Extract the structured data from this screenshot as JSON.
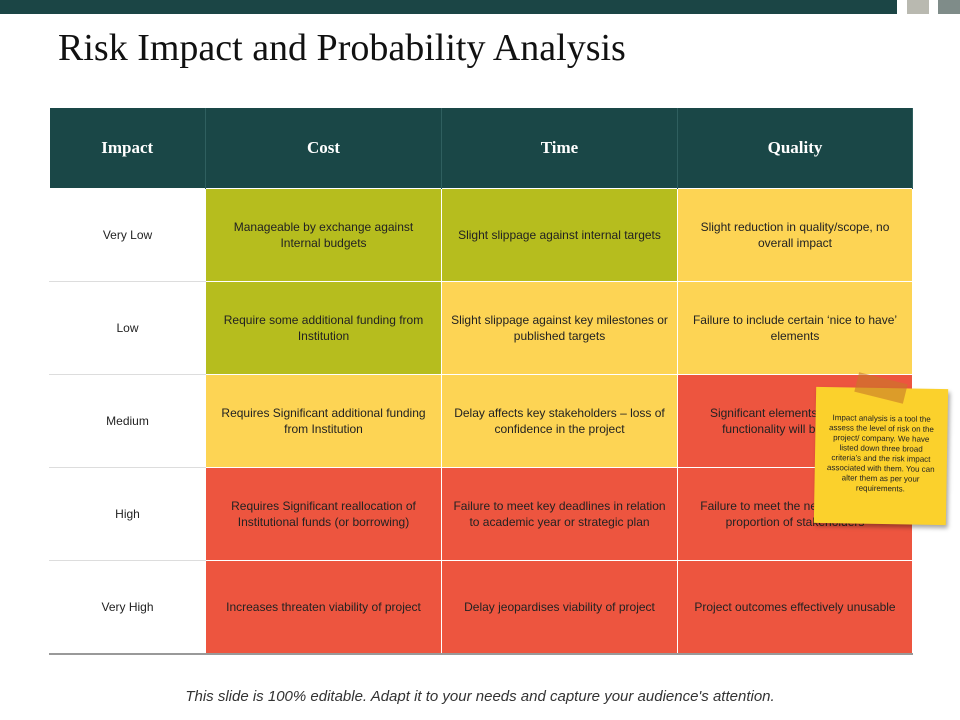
{
  "title": "Risk Impact and Probability Analysis",
  "table": {
    "header": [
      "Impact",
      "Cost",
      "Time",
      "Quality"
    ],
    "rows": [
      [
        "Very Low",
        "Manageable by exchange against Internal budgets",
        "Slight slippage against internal targets",
        "Slight reduction in quality/scope, no overall impact"
      ],
      [
        "Low",
        "Require some additional funding from Institution",
        "Slight slippage against key milestones or published targets",
        "Failure to include certain ‘nice to have’ elements"
      ],
      [
        "Medium",
        "Requires Significant additional funding from Institution",
        "Delay affects key stakeholders – loss of confidence in the project",
        "Significant elements of scope or functionality will be affected"
      ],
      [
        "High",
        "Requires Significant reallocation of Institutional funds (or borrowing)",
        "Failure to meet key deadlines in relation to academic year or strategic plan",
        "Failure to meet the needs of a large proportion of stakeholders"
      ],
      [
        "Very High",
        "Increases threaten viability of project",
        "Delay jeopardises viability of project",
        "Project outcomes effectively unusable"
      ]
    ]
  },
  "note": "Impact analysis is a tool the assess the level of risk on the project/ company. We have listed down three broad criteria’s and the risk impact associated with them. You can alter them as per your requirements.",
  "footer": "This slide is 100% editable. Adapt it to your needs and capture your audience's attention."
}
